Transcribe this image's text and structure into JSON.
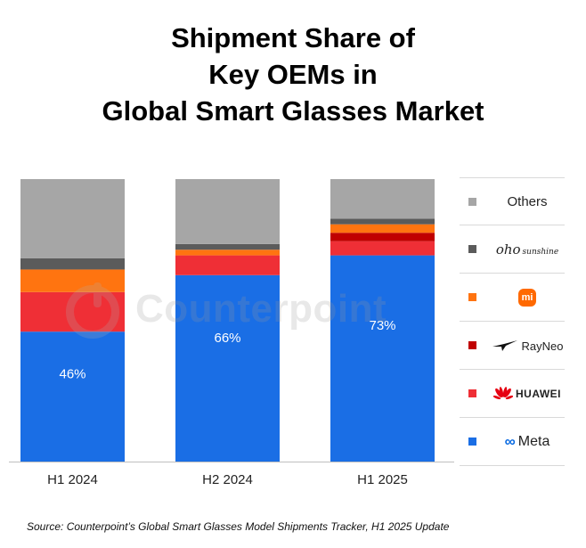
{
  "title_lines": [
    "Shipment Share of",
    "Key OEMs in",
    "Global Smart Glasses Market"
  ],
  "watermark": "Counterpoint",
  "source": "Source: Counterpoint’s Global Smart Glasses Model Shipments Tracker, H1 2025 Update",
  "chart_data": {
    "type": "bar",
    "stacked": true,
    "normalized_percent": true,
    "ylim": [
      0,
      100
    ],
    "grid": false,
    "legend_placement": "right",
    "categories": [
      "H1 2024",
      "H2 2024",
      "H1 2025"
    ],
    "series": [
      {
        "name": "Meta",
        "color": "#1a6ee5",
        "values": [
          46,
          66,
          73
        ],
        "labels": [
          "46%",
          "66%",
          "73%"
        ]
      },
      {
        "name": "HUAWEI",
        "color": "#ef2f36",
        "values": [
          14,
          7,
          5
        ]
      },
      {
        "name": "RayNeo",
        "color": "#c00000",
        "values": [
          0,
          0,
          3
        ]
      },
      {
        "name": "Xiaomi",
        "color": "#ff7410",
        "values": [
          8,
          2,
          3
        ]
      },
      {
        "name": "oho sunshine",
        "color": "#5b5b5b",
        "values": [
          4,
          2,
          2
        ]
      },
      {
        "name": "Others",
        "color": "#a6a6a6",
        "values": [
          28,
          23,
          14
        ]
      }
    ]
  },
  "legend": [
    {
      "key": "others",
      "label": "Others",
      "color": "#a6a6a6"
    },
    {
      "key": "oho",
      "label": "oho",
      "sub": "sunshine",
      "color": "#5b5b5b"
    },
    {
      "key": "xiaomi",
      "label": "mi",
      "color": "#ff7410"
    },
    {
      "key": "rayneo",
      "label": "RayNeo",
      "color": "#c00000"
    },
    {
      "key": "huawei",
      "label": "HUAWEI",
      "color": "#ef2f36"
    },
    {
      "key": "meta",
      "label": "Meta",
      "color": "#1a6ee5"
    }
  ]
}
